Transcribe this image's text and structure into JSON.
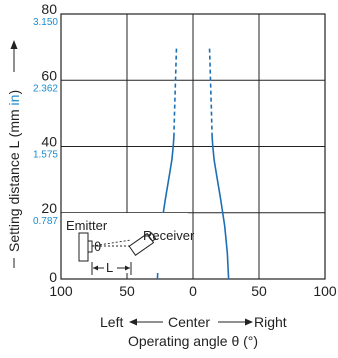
{
  "chart_data": {
    "type": "line",
    "xlabel": "Operating angle θ (°)",
    "ylabel": "Setting distance L (mm in)",
    "ylabel_parts": {
      "main": "Setting distance L (mm ",
      "unit": "in",
      "close": ")"
    },
    "x_ticks": [
      {
        "value": -100,
        "label": "100"
      },
      {
        "value": -50,
        "label": "50"
      },
      {
        "value": 0,
        "label": "0"
      },
      {
        "value": 50,
        "label": "50"
      },
      {
        "value": 100,
        "label": "100"
      }
    ],
    "y_ticks": [
      {
        "value": 0,
        "label": "0",
        "inch": ""
      },
      {
        "value": 20,
        "label": "20",
        "inch": "0.787"
      },
      {
        "value": 40,
        "label": "40",
        "inch": "1.575"
      },
      {
        "value": 60,
        "label": "60",
        "inch": "2.362"
      },
      {
        "value": 80,
        "label": "80",
        "inch": "3.150"
      }
    ],
    "xlim": [
      -100,
      100
    ],
    "ylim": [
      0,
      80
    ],
    "grid": true,
    "direction_labels": {
      "left": "Left",
      "center": "Center",
      "right": "Right"
    },
    "series": [
      {
        "solid": [
          [
            -27,
            0
          ],
          [
            -26,
            8
          ],
          [
            -24,
            16
          ],
          [
            -21,
            24
          ],
          [
            -18,
            31
          ],
          [
            -16,
            36
          ],
          [
            -15,
            40
          ],
          [
            -14.5,
            43
          ]
        ],
        "dashed": [
          [
            -14.5,
            43
          ],
          [
            -14,
            50
          ],
          [
            -13.5,
            57
          ],
          [
            -13,
            63
          ],
          [
            -12.5,
            70
          ]
        ]
      },
      {
        "solid": [
          [
            27,
            0
          ],
          [
            26,
            8
          ],
          [
            24,
            16
          ],
          [
            21,
            24
          ],
          [
            18,
            31
          ],
          [
            16,
            36
          ],
          [
            15,
            40
          ],
          [
            14.5,
            43
          ]
        ],
        "dashed": [
          [
            14.5,
            43
          ],
          [
            14,
            50
          ],
          [
            13.5,
            57
          ],
          [
            13,
            63
          ],
          [
            12.5,
            70
          ]
        ]
      }
    ],
    "inset": {
      "emitter_label": "Emitter",
      "receiver_label": "Receiver",
      "theta_label": "θ",
      "distance_label": "L"
    }
  }
}
